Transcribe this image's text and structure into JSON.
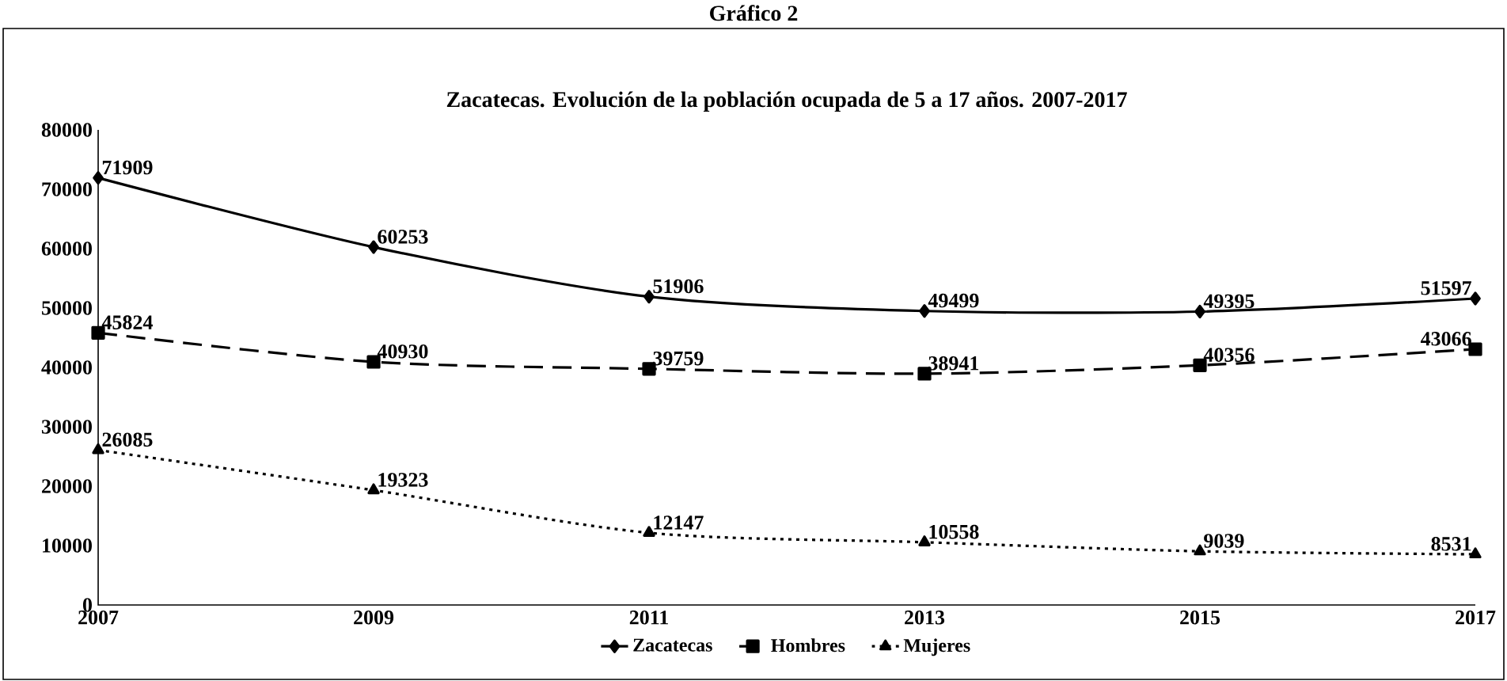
{
  "chart_data": {
    "type": "line",
    "title": "Gráfico 2",
    "subtitle": "Zacatecas. Evolución de la población ocupada de 5 a 17 años. 2007-2017",
    "x": [
      2007,
      2009,
      2011,
      2013,
      2015,
      2017
    ],
    "series": [
      {
        "name": "Zacatecas",
        "color": "#000000",
        "marker": "diamond",
        "line_style": "solid",
        "values": [
          71909,
          60253,
          51906,
          49499,
          49395,
          51597
        ]
      },
      {
        "name": "Hombres",
        "color": "#000000",
        "marker": "square",
        "line_style": "dashed",
        "values": [
          45824,
          40930,
          39759,
          38941,
          40356,
          43066
        ]
      },
      {
        "name": "Mujeres",
        "color": "#000000",
        "marker": "triangle",
        "line_style": "dotted",
        "values": [
          26085,
          19323,
          12147,
          10558,
          9039,
          8531
        ]
      }
    ],
    "xlim": [
      2007,
      2017
    ],
    "xticks": [
      2007,
      2009,
      2011,
      2013,
      2015,
      2017
    ],
    "ylim": [
      0,
      80000
    ],
    "yticks": [
      0,
      10000,
      20000,
      30000,
      40000,
      50000,
      60000,
      70000,
      80000
    ],
    "data_labels": true,
    "grid": false,
    "legend": "bottom"
  }
}
